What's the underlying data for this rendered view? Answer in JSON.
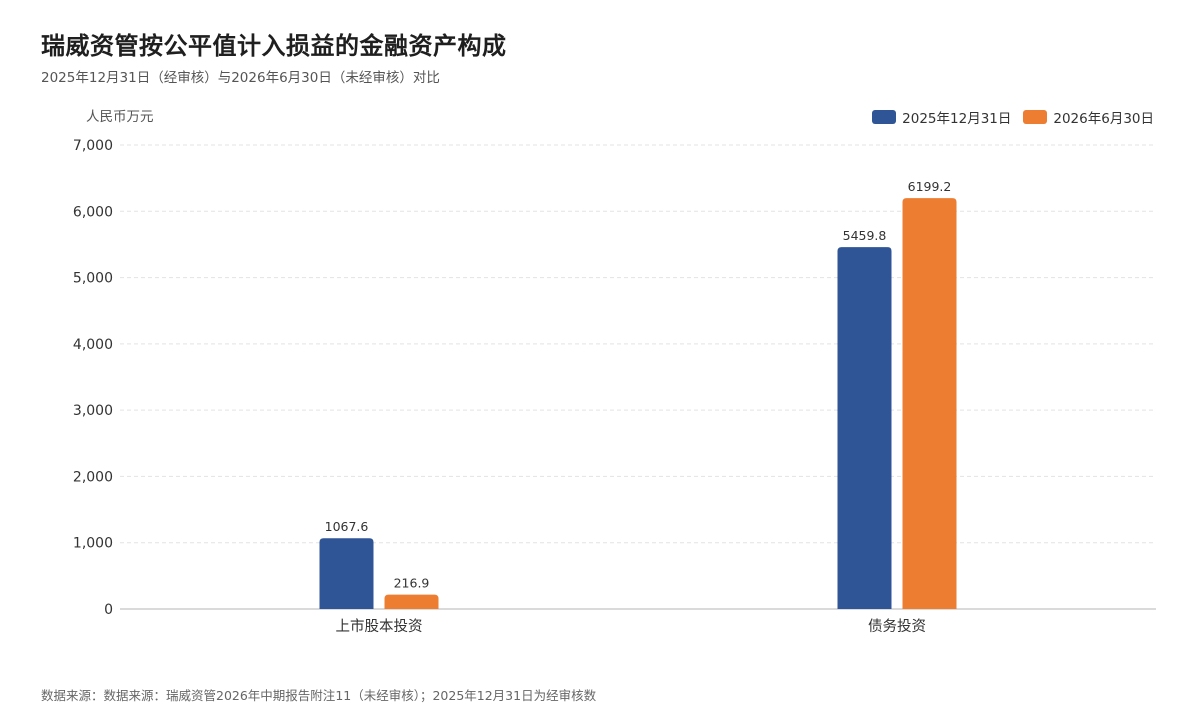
{
  "header": {
    "title": "瑞威资管按公平值计入损益的金融资产构成",
    "subtitle": "2025年12月31日（经审核）与2026年6月30日（未经审核）对比"
  },
  "footer": {
    "source": "数据来源：数据来源：瑞威资管2026年中期报告附注11（未经审核）；2025年12月31日为经审核数"
  },
  "chart_data": {
    "type": "bar",
    "title": "瑞威资管按公平值计入损益的金融资产构成",
    "subtitle": "2025年12月31日（经审核）与2026年6月30日（未经审核）对比",
    "ylabel": "人民币万元",
    "xlabel": "",
    "categories": [
      "上市股本投资",
      "债务投资"
    ],
    "series": [
      {
        "name": "2025年12月31日",
        "values": [
          1067.6,
          5459.8
        ],
        "color": "#2f5597"
      },
      {
        "name": "2026年6月30日",
        "values": [
          216.9,
          6199.2
        ],
        "color": "#ed7d31"
      }
    ],
    "ylim": [
      0,
      7000
    ],
    "yticks": [
      0,
      1000,
      2000,
      3000,
      4000,
      5000,
      6000,
      7000
    ],
    "ytick_labels": [
      "0",
      "1,000",
      "2,000",
      "3,000",
      "4,000",
      "5,000",
      "6,000",
      "7,000"
    ],
    "grid": true,
    "legend_position": "top-right"
  }
}
